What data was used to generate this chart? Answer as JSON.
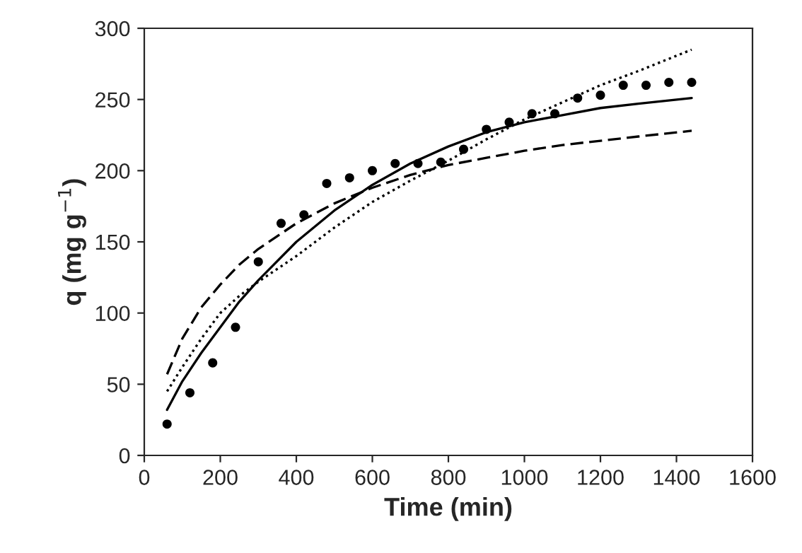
{
  "chart_data": {
    "type": "scatter",
    "xlabel": "Time (min)",
    "ylabel": "q (mg g$^{−1}$)",
    "xlim": [
      0,
      1600
    ],
    "xticks": [
      0,
      200,
      400,
      600,
      800,
      1000,
      1200,
      1400,
      1600
    ],
    "ylim": [
      0,
      300
    ],
    "yticks": [
      0,
      50,
      100,
      150,
      200,
      250,
      300
    ],
    "grid": false,
    "legend": false,
    "series": [
      {
        "color": "#000000",
        "marker": "circle",
        "x": [
          60,
          120,
          180,
          240,
          300,
          360,
          420,
          480,
          540,
          600,
          660,
          720,
          780,
          840,
          900,
          960,
          1020,
          1080,
          1140,
          1200,
          1260,
          1320,
          1380,
          1440
        ],
        "values": [
          22,
          44,
          65,
          90,
          136,
          163,
          169,
          191,
          195,
          200,
          205,
          205,
          206,
          215,
          229,
          234,
          240,
          240,
          251,
          253,
          260,
          260,
          262,
          262
        ]
      },
      {
        "type": "line",
        "color": "#000000",
        "line_style": "solid",
        "x": [
          60,
          100,
          150,
          200,
          250,
          300,
          400,
          500,
          600,
          700,
          800,
          900,
          1000,
          1100,
          1200,
          1300,
          1440
        ],
        "values": [
          32,
          52,
          72,
          90,
          108,
          123,
          150,
          172,
          190,
          205,
          217,
          227,
          234,
          239,
          244,
          247,
          251
        ]
      },
      {
        "type": "line",
        "color": "#000000",
        "line_style": "dashed",
        "x": [
          60,
          100,
          150,
          200,
          250,
          300,
          400,
          500,
          600,
          700,
          800,
          900,
          1000,
          1100,
          1200,
          1300,
          1440
        ],
        "values": [
          57,
          82,
          104,
          120,
          134,
          145,
          163,
          177,
          188,
          197,
          204,
          209,
          214,
          218,
          221,
          224,
          228
        ]
      },
      {
        "type": "line",
        "color": "#000000",
        "line_style": "dotted",
        "x": [
          60,
          100,
          150,
          200,
          250,
          300,
          400,
          500,
          600,
          700,
          800,
          900,
          1000,
          1100,
          1200,
          1300,
          1440
        ],
        "values": [
          45,
          62,
          82,
          100,
          112,
          122,
          140,
          160,
          178,
          193,
          207,
          222,
          236,
          248,
          260,
          270,
          285
        ]
      }
    ]
  }
}
